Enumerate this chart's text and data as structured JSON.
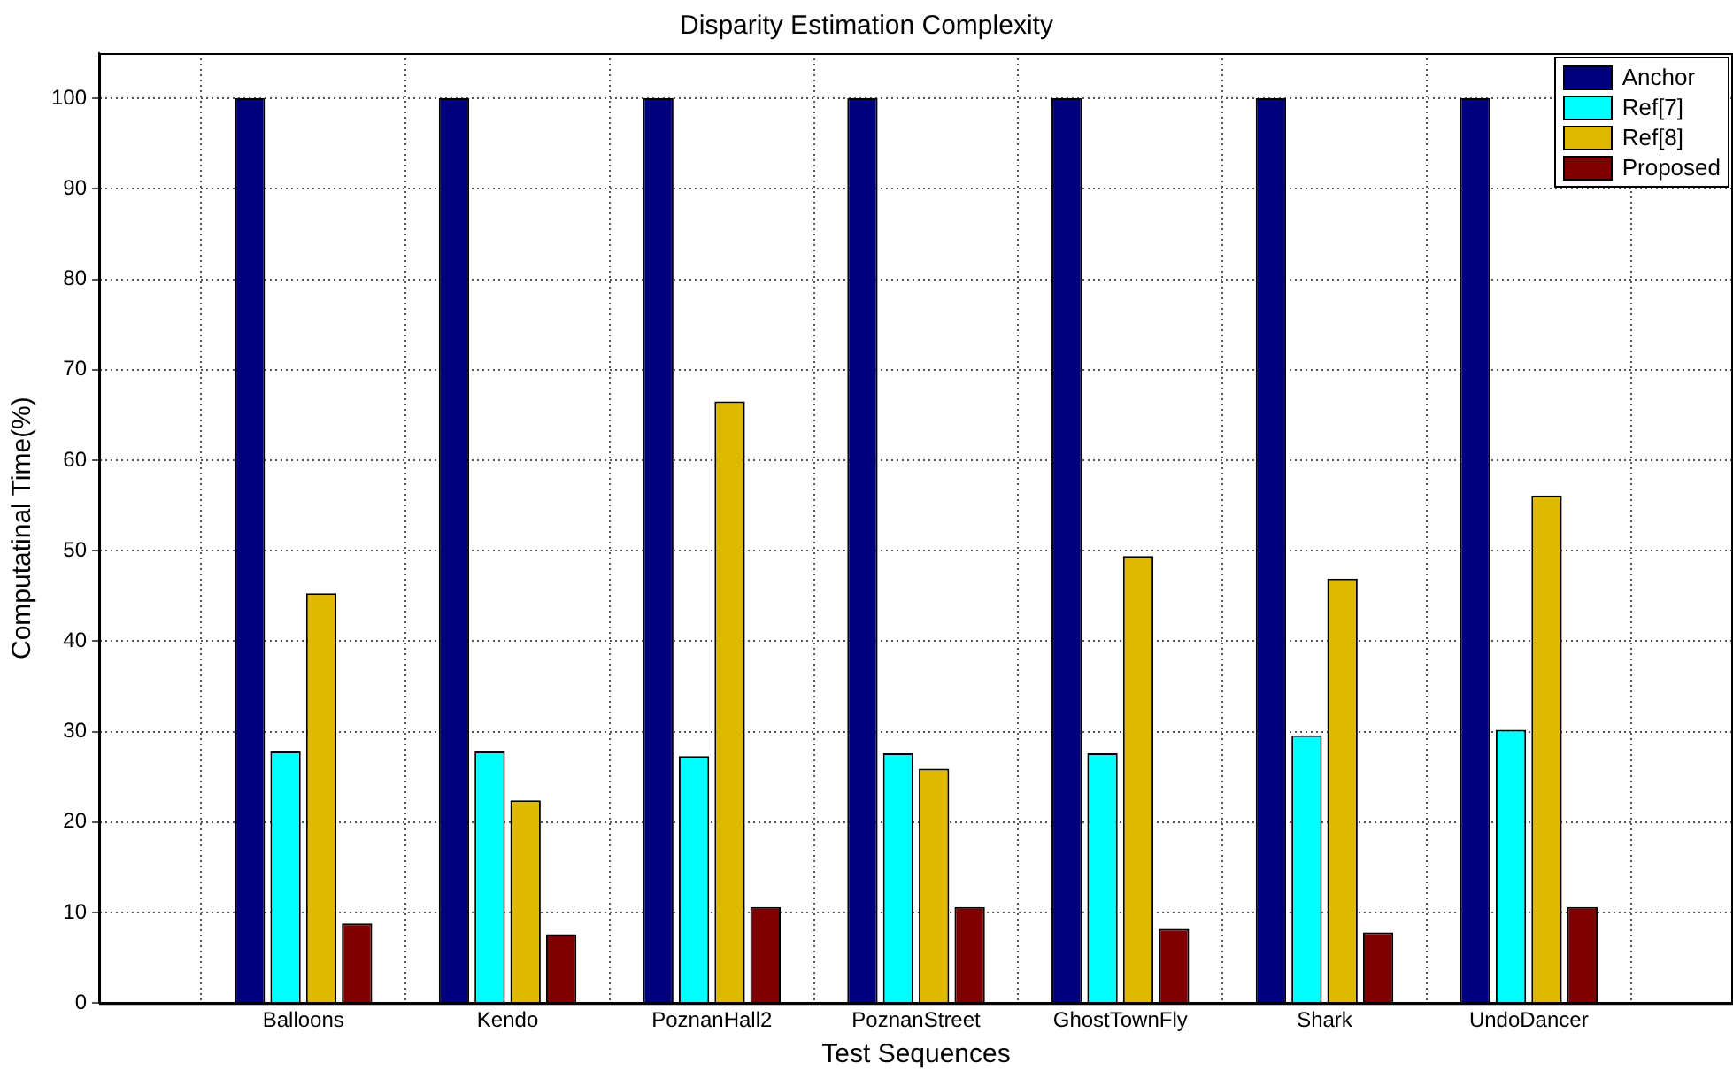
{
  "chart_data": {
    "type": "bar",
    "title": "Disparity Estimation Complexity",
    "xlabel": "Test Sequences",
    "ylabel": "Computatinal Time(%)",
    "categories": [
      "Balloons",
      "Kendo",
      "PoznanHall2",
      "PoznanStreet",
      "GhostTownFly",
      "Shark",
      "UndoDancer"
    ],
    "series": [
      {
        "name": "Anchor",
        "color": "#00007f",
        "values": [
          100,
          100,
          100,
          100,
          100,
          100,
          100
        ]
      },
      {
        "name": "Ref[7]",
        "color": "#00ffff",
        "values": [
          27.8,
          27.8,
          27.3,
          27.6,
          27.6,
          29.6,
          30.2
        ]
      },
      {
        "name": "Ref[8]",
        "color": "#dfb800",
        "values": [
          45.3,
          22.4,
          66.5,
          25.9,
          49.4,
          46.9,
          56.1
        ]
      },
      {
        "name": "Proposed",
        "color": "#7f0000",
        "values": [
          8.8,
          7.6,
          10.6,
          10.6,
          8.2,
          7.8,
          10.6
        ]
      }
    ],
    "ylim": [
      0,
      105
    ],
    "yticks": [
      0,
      10,
      20,
      30,
      40,
      50,
      60,
      70,
      80,
      90,
      100
    ],
    "grid": true,
    "legend": "top right"
  }
}
